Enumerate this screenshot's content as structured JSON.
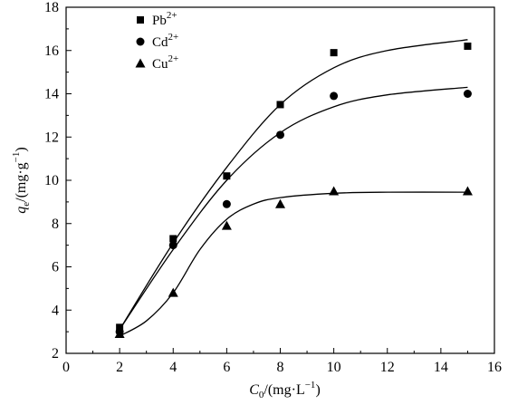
{
  "chart_data": {
    "type": "scatter",
    "title": "",
    "xlabel": {
      "main": "C",
      "sub": "0",
      "rest": "/(mg·L",
      "sup": "−1",
      "close": ")"
    },
    "ylabel": {
      "main": "q",
      "sub": "e",
      "rest": "/(mg·g",
      "sup": "−1",
      "close": ")"
    },
    "xlim": [
      0,
      16
    ],
    "ylim": [
      2,
      18
    ],
    "xticks": [
      0,
      2,
      4,
      6,
      8,
      10,
      12,
      14,
      16
    ],
    "yticks": [
      2,
      4,
      6,
      8,
      10,
      12,
      14,
      16,
      18
    ],
    "grid": false,
    "legend_position": "top-left",
    "series": [
      {
        "name": "Pb",
        "name_sup": "2+",
        "marker": "square",
        "x": [
          2,
          4,
          6,
          8,
          10,
          15
        ],
        "y": [
          3.2,
          7.3,
          10.2,
          13.5,
          15.9,
          16.2
        ],
        "fit_curve": [
          [
            2,
            3.1
          ],
          [
            4,
            7.1
          ],
          [
            6,
            10.6
          ],
          [
            8,
            13.5
          ],
          [
            10,
            15.2
          ],
          [
            12,
            16.0
          ],
          [
            15,
            16.5
          ]
        ]
      },
      {
        "name": "Cd",
        "name_sup": "2+",
        "marker": "circle",
        "x": [
          2,
          4,
          6,
          8,
          10,
          15
        ],
        "y": [
          3.0,
          7.0,
          8.9,
          12.1,
          13.9,
          14.0
        ],
        "fit_curve": [
          [
            2,
            3.1
          ],
          [
            4,
            6.8
          ],
          [
            6,
            10.0
          ],
          [
            8,
            12.2
          ],
          [
            10,
            13.4
          ],
          [
            12,
            13.95
          ],
          [
            15,
            14.3
          ]
        ]
      },
      {
        "name": "Cu",
        "name_sup": "2+",
        "marker": "triangle",
        "x": [
          2,
          4,
          6,
          8,
          10,
          15
        ],
        "y": [
          2.9,
          4.8,
          7.9,
          8.9,
          9.5,
          9.5
        ],
        "fit_curve": [
          [
            2,
            2.8
          ],
          [
            3,
            3.5
          ],
          [
            4,
            4.8
          ],
          [
            5,
            6.8
          ],
          [
            6,
            8.2
          ],
          [
            7,
            8.9
          ],
          [
            8,
            9.2
          ],
          [
            10,
            9.4
          ],
          [
            12,
            9.45
          ],
          [
            15,
            9.45
          ]
        ]
      }
    ]
  }
}
